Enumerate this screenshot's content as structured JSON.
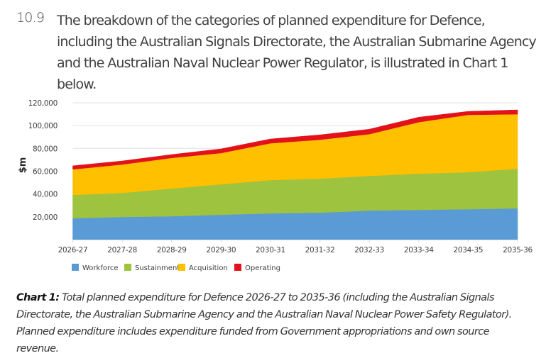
{
  "paragraph": {
    "number": "10.9",
    "text": "The breakdown of the categories of planned expenditure for Defence, including the Australian Signals Directorate, the Australian Submarine Agency and the Australian Naval Nuclear Power Regulator, is illustrated in Chart 1 below."
  },
  "caption": {
    "label": "Chart 1:",
    "text": " Total planned expenditure for Defence 2026-27 to 2035-36 (including the Australian Signals Directorate, the Australian Submarine Agency and the Australian Naval Nuclear Power Safety Regulator). Planned expenditure includes expenditure funded from Government appropriations and own source revenue."
  },
  "chart_data": {
    "type": "area",
    "stacked": true,
    "title": "",
    "xlabel": "",
    "ylabel": "$m",
    "ylim": [
      0,
      120000
    ],
    "yticks": [
      20000,
      40000,
      60000,
      80000,
      100000,
      120000
    ],
    "ytick_labels": [
      "20,000",
      "40,000",
      "60,000",
      "80,000",
      "100,000",
      "120,000"
    ],
    "grid": true,
    "legend_position": "bottom-left",
    "categories": [
      "2026-27",
      "2027-28",
      "2028-29",
      "2029-30",
      "2030-31",
      "2031-32",
      "2032-33",
      "2033-34",
      "2034-35",
      "2035-36"
    ],
    "series": [
      {
        "name": "Workforce",
        "color": "#5B9BD5",
        "values": [
          18700,
          19900,
          20500,
          21800,
          23000,
          23600,
          25500,
          26100,
          26700,
          27400
        ]
      },
      {
        "name": "Sustainment",
        "color": "#9DC33F",
        "values": [
          20500,
          21100,
          24300,
          26700,
          29200,
          29900,
          30400,
          31700,
          32400,
          34800
        ]
      },
      {
        "name": "Acquisition",
        "color": "#FFC000",
        "values": [
          22400,
          24900,
          26800,
          27400,
          32300,
          34100,
          36600,
          45200,
          50300,
          47800
        ]
      },
      {
        "name": "Operating",
        "color": "#E3121A",
        "values": [
          3100,
          3100,
          3000,
          3700,
          3800,
          4300,
          4400,
          4400,
          3100,
          3800
        ]
      }
    ]
  }
}
